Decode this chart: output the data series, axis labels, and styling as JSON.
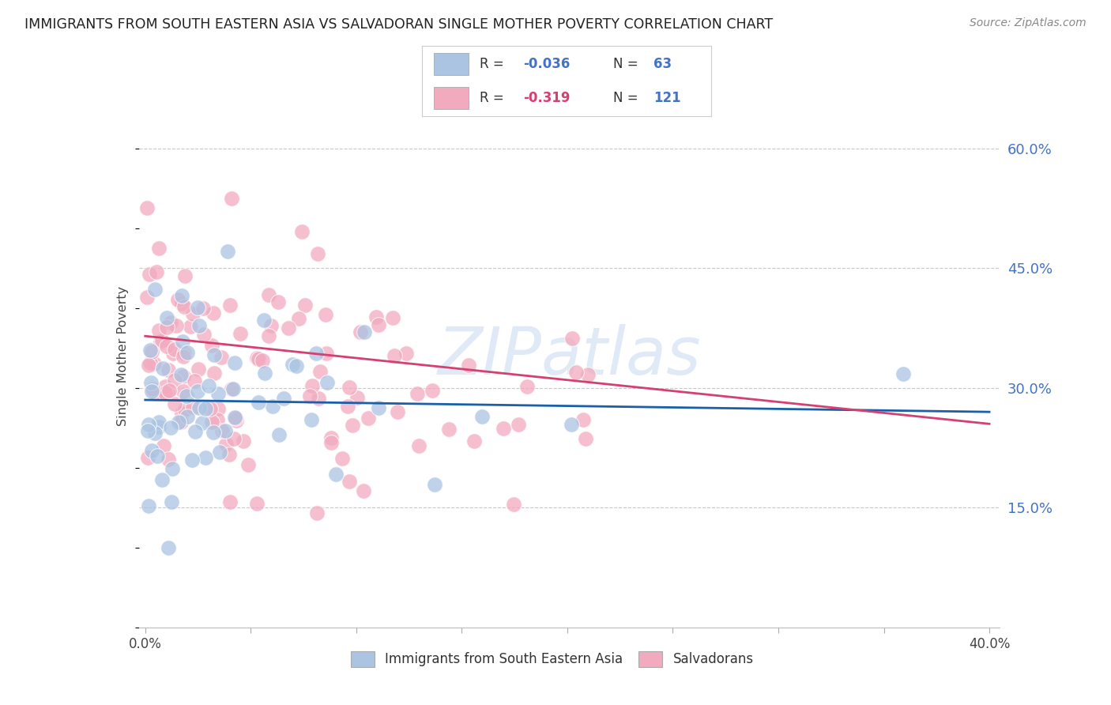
{
  "title": "IMMIGRANTS FROM SOUTH EASTERN ASIA VS SALVADORAN SINGLE MOTHER POVERTY CORRELATION CHART",
  "source": "Source: ZipAtlas.com",
  "ylabel": "Single Mother Poverty",
  "yticks": [
    "60.0%",
    "45.0%",
    "30.0%",
    "15.0%"
  ],
  "ytick_values": [
    0.6,
    0.45,
    0.3,
    0.15
  ],
  "xlim": [
    0.0,
    0.4
  ],
  "ylim": [
    0.0,
    0.65
  ],
  "blue_R": "-0.036",
  "blue_N": "63",
  "pink_R": "-0.319",
  "pink_N": "121",
  "blue_color": "#aac4e2",
  "pink_color": "#f2aabf",
  "blue_line_color": "#1a5fa8",
  "pink_line_color": "#d44070",
  "legend_label_blue": "Immigrants from South Eastern Asia",
  "legend_label_pink": "Salvadorans",
  "watermark": "ZIPatlas",
  "background_color": "#ffffff",
  "grid_color": "#c8c8c8",
  "accent_color": "#4472c4"
}
